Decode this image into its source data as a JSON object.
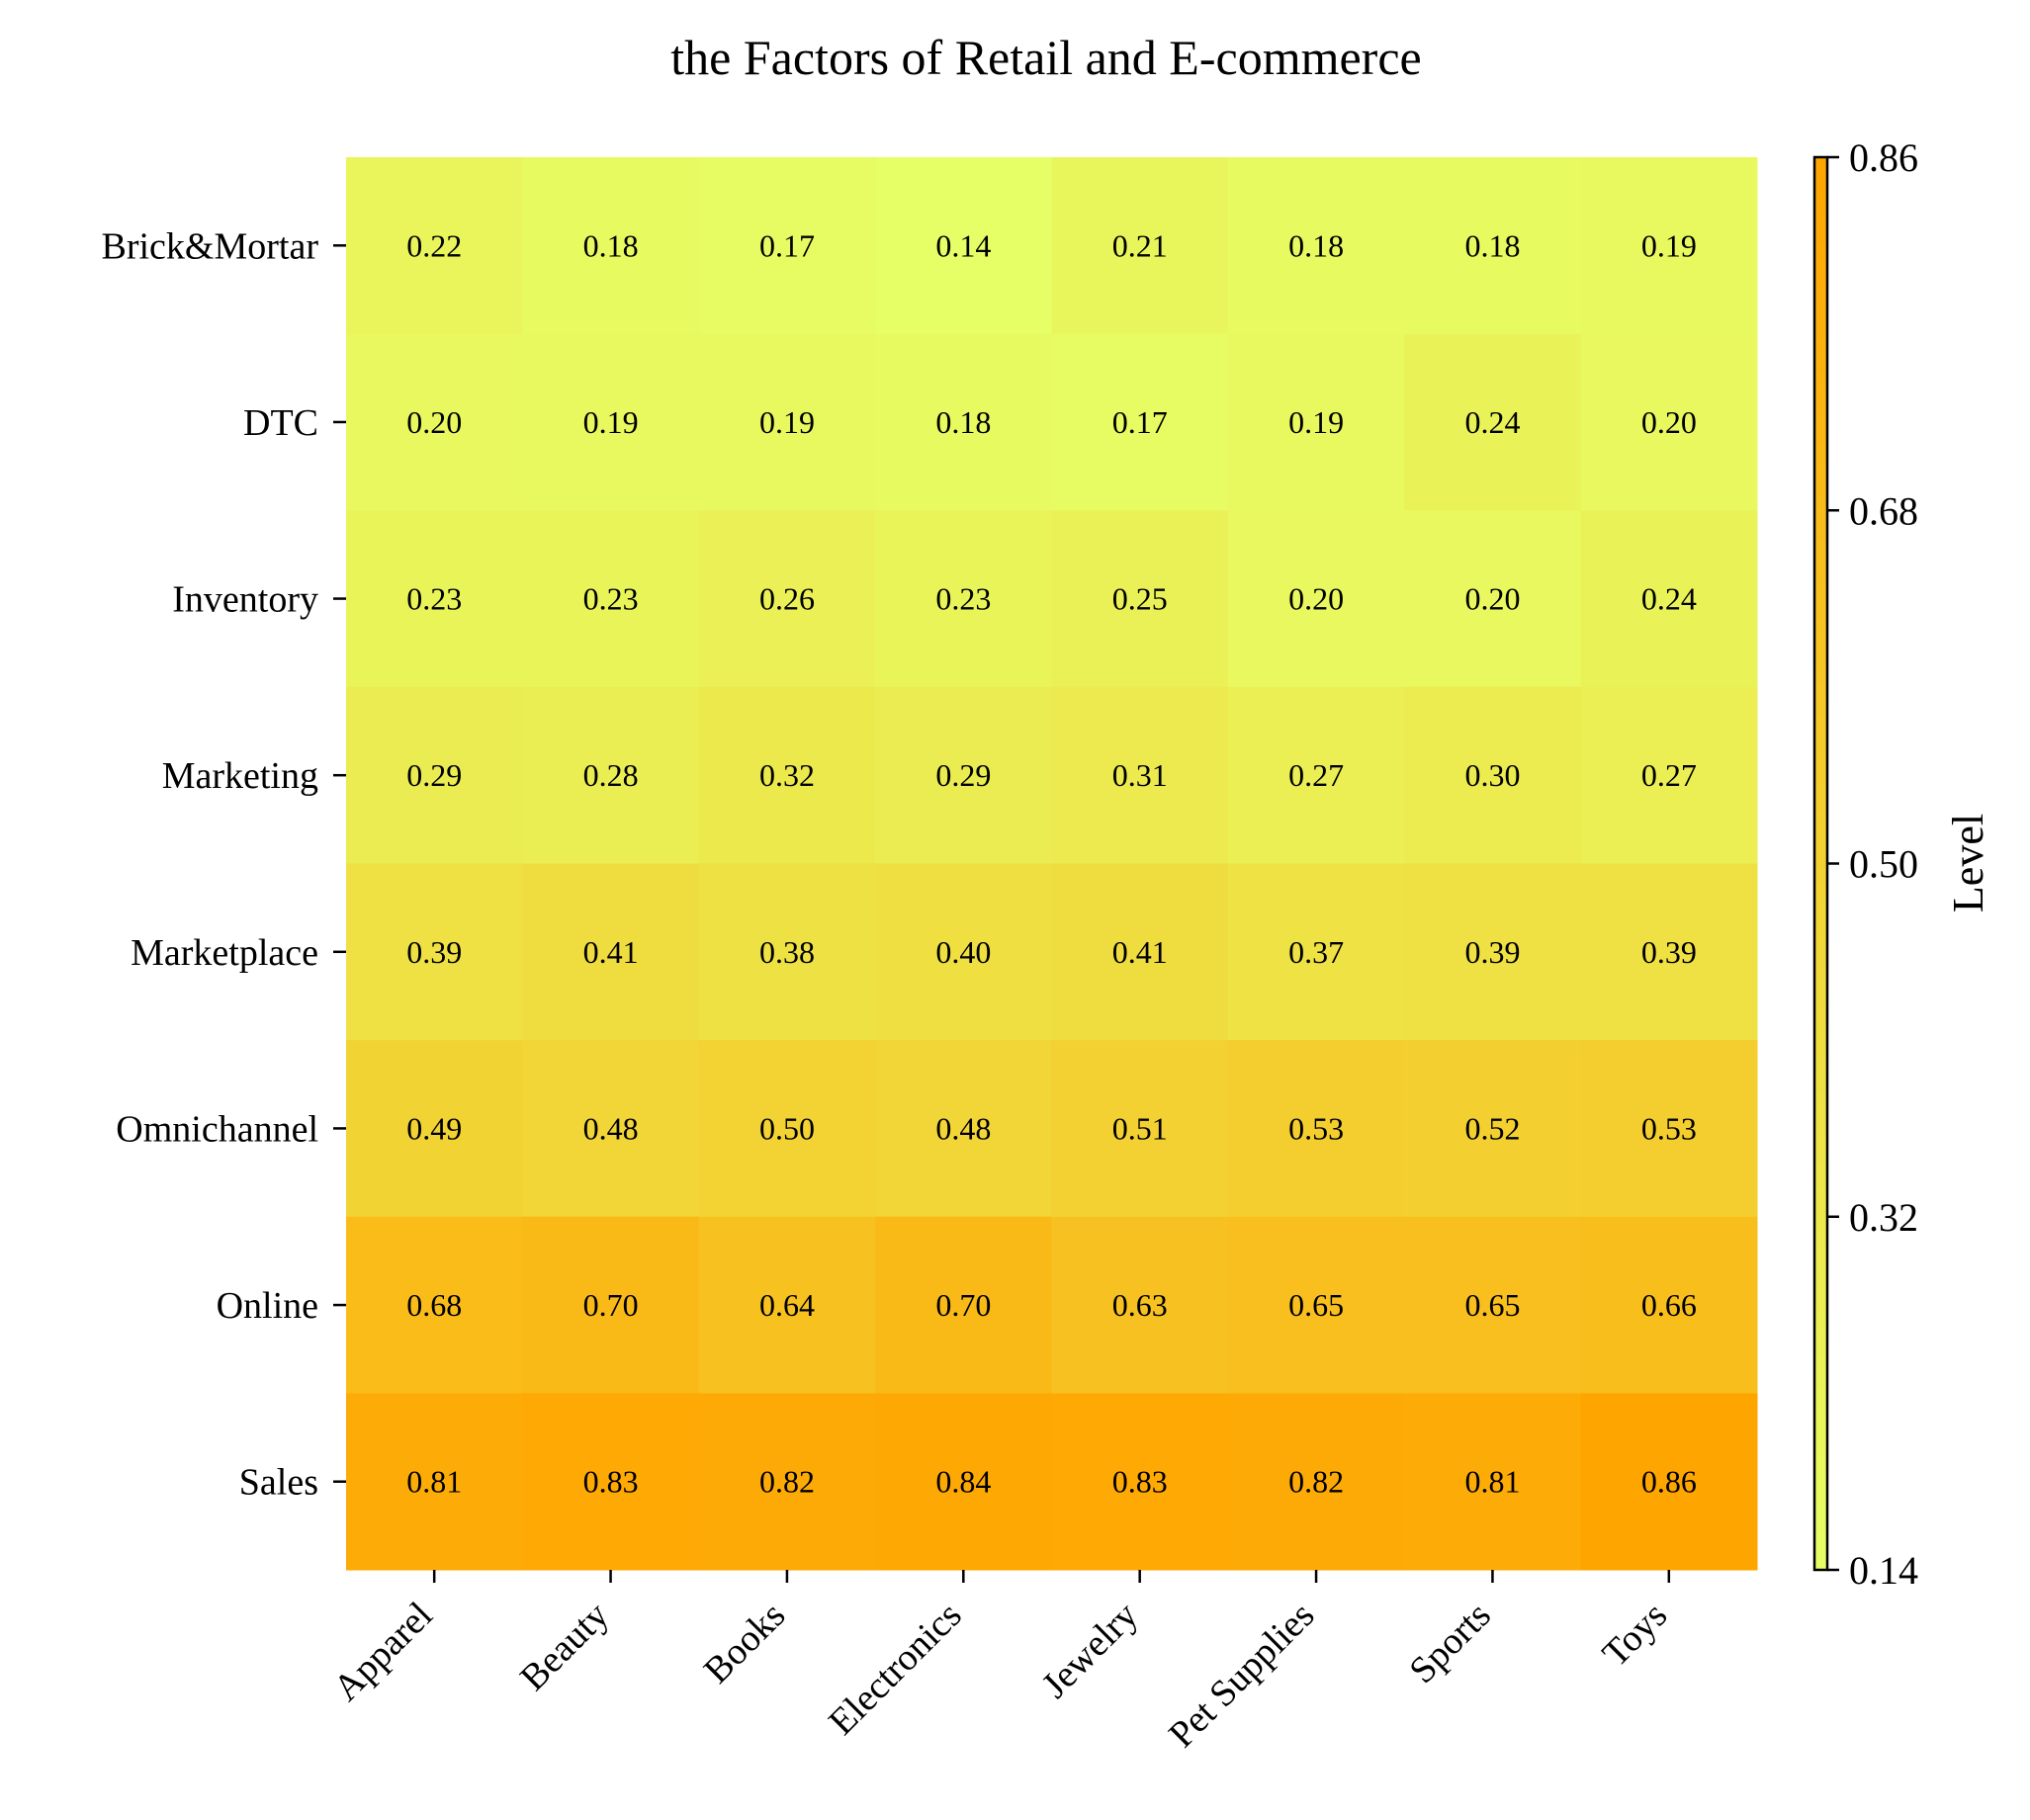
{
  "chart_data": {
    "type": "heatmap",
    "title": "the Factors of Retail and E-commerce",
    "rows": [
      "Brick&Mortar",
      "DTC",
      "Inventory",
      "Marketing",
      "Marketplace",
      "Omnichannel",
      "Online",
      "Sales"
    ],
    "columns": [
      "Apparel",
      "Beauty",
      "Books",
      "Electronics",
      "Jewelry",
      "Pet Supplies",
      "Sports",
      "Toys"
    ],
    "values": [
      [
        0.22,
        0.18,
        0.17,
        0.14,
        0.21,
        0.18,
        0.18,
        0.19
      ],
      [
        0.2,
        0.19,
        0.19,
        0.18,
        0.17,
        0.19,
        0.24,
        0.2
      ],
      [
        0.23,
        0.23,
        0.26,
        0.23,
        0.25,
        0.2,
        0.2,
        0.24
      ],
      [
        0.29,
        0.28,
        0.32,
        0.29,
        0.31,
        0.27,
        0.3,
        0.27
      ],
      [
        0.39,
        0.41,
        0.38,
        0.4,
        0.41,
        0.37,
        0.39,
        0.39
      ],
      [
        0.49,
        0.48,
        0.5,
        0.48,
        0.51,
        0.53,
        0.52,
        0.53
      ],
      [
        0.68,
        0.7,
        0.64,
        0.7,
        0.63,
        0.65,
        0.65,
        0.66
      ],
      [
        0.81,
        0.83,
        0.82,
        0.84,
        0.83,
        0.82,
        0.81,
        0.86
      ]
    ],
    "value_format": "0.00",
    "colorbar": {
      "label": "Level",
      "range": [
        0.14,
        0.86
      ],
      "ticks": [
        "0.14",
        "0.32",
        "0.50",
        "0.68",
        "0.86"
      ],
      "color_low": "#e6ff66",
      "color_high": "#ffa500"
    }
  }
}
